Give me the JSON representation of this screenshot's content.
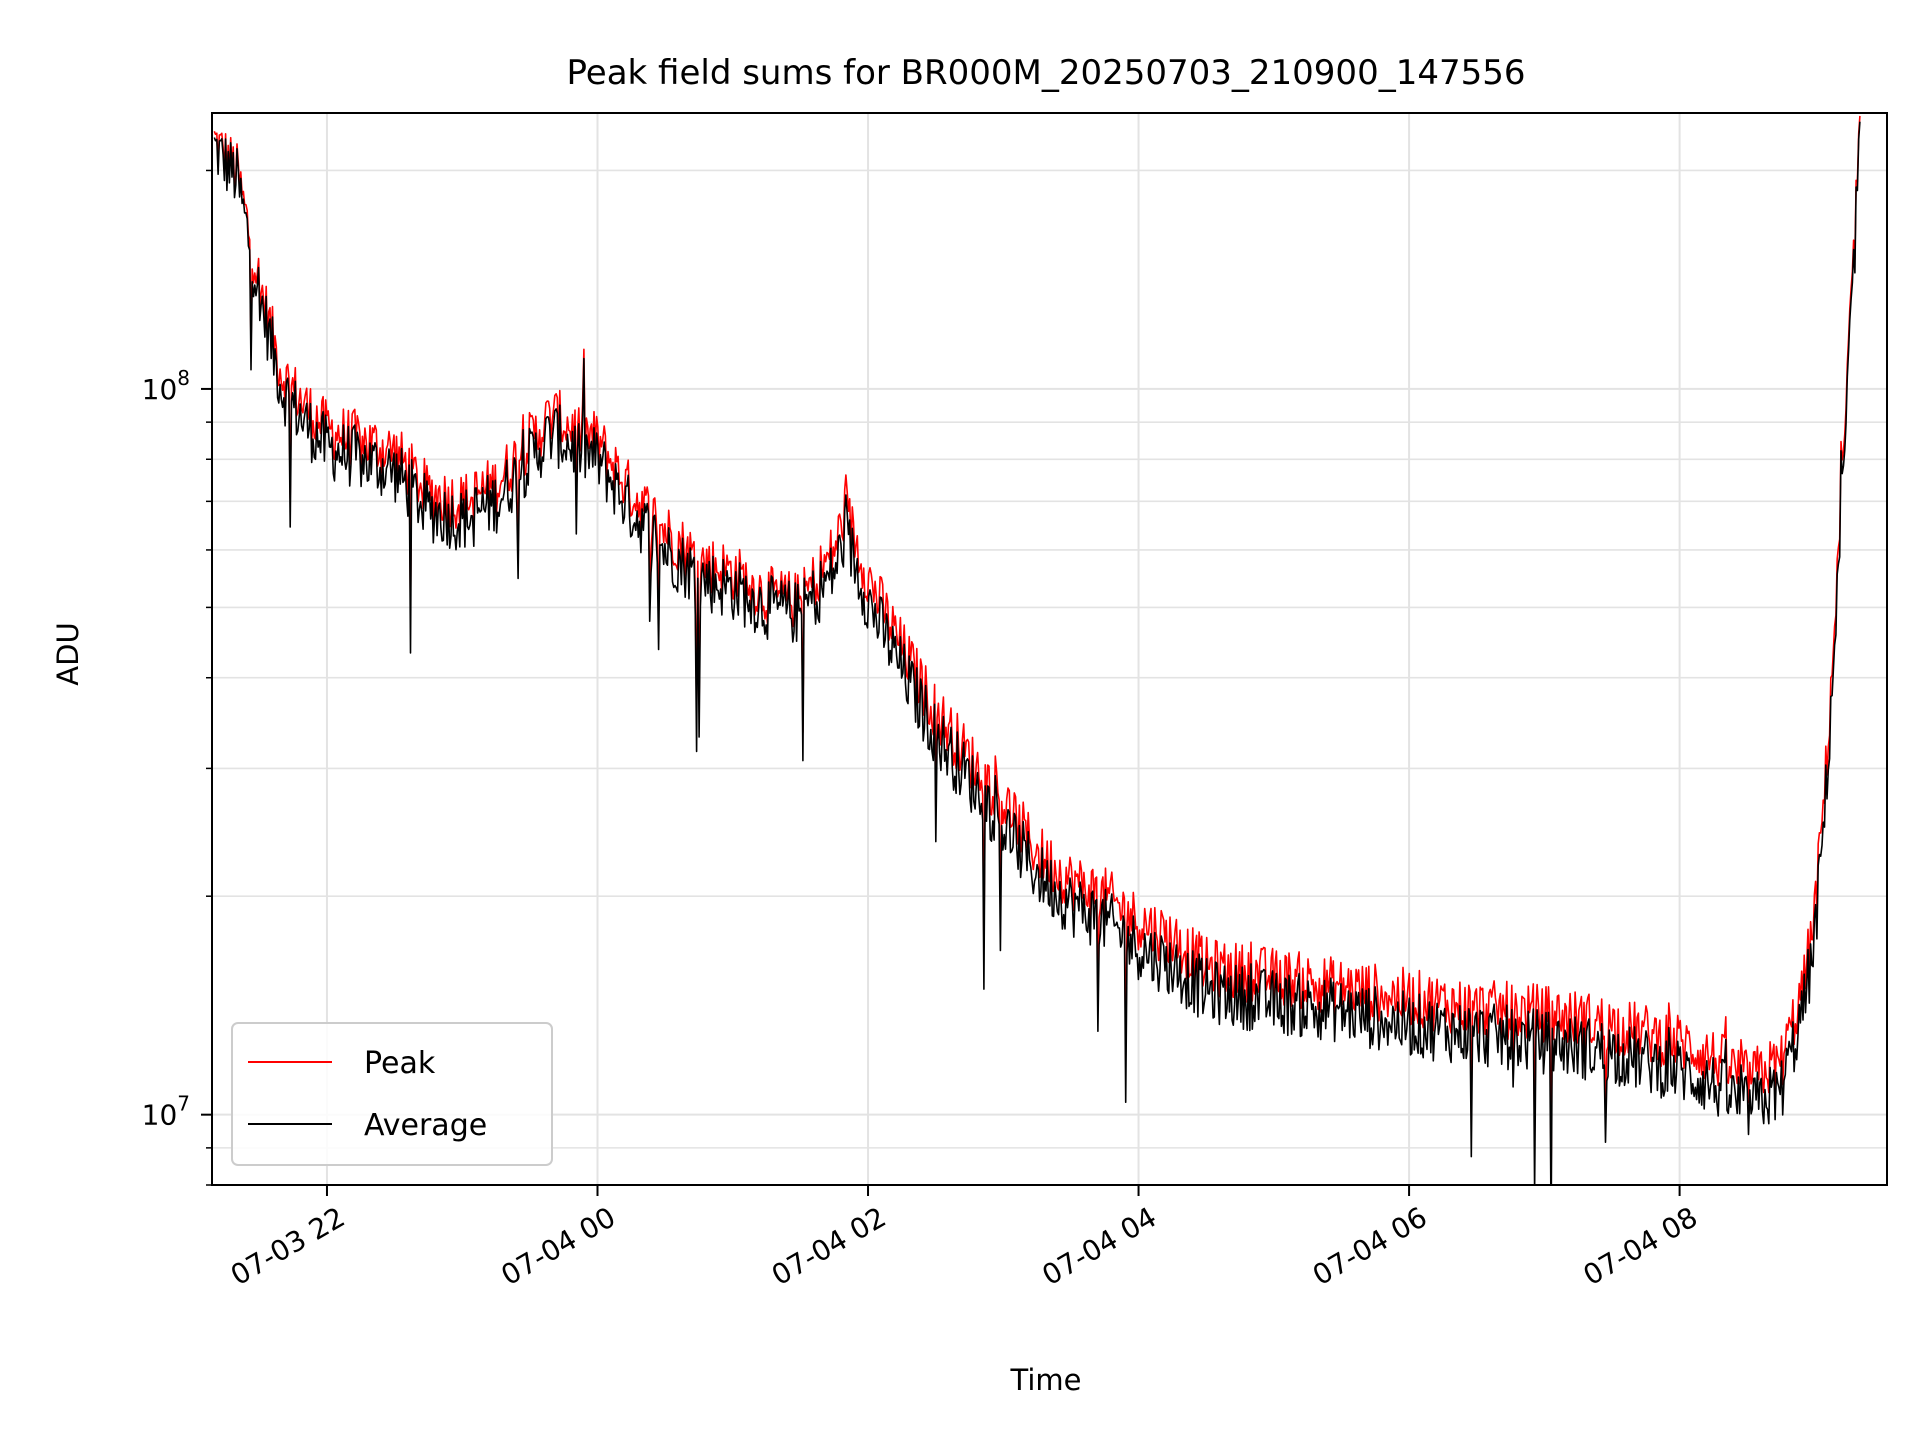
{
  "chart_data": {
    "type": "line",
    "title": "Peak field sums for BR000M_20250703_210900_147556",
    "xlabel": "Time",
    "ylabel": "ADU",
    "yscale": "log",
    "grid": true,
    "legend_position": "lower-left",
    "xlim": [
      "2025-07-03 21:09",
      "2025-07-04 09:32"
    ],
    "ylim": [
      8000000,
      240000000
    ],
    "x_ticks": [
      {
        "value": "2025-07-03 22:00",
        "label": "07-03 22"
      },
      {
        "value": "2025-07-04 00:00",
        "label": "07-04 00"
      },
      {
        "value": "2025-07-04 02:00",
        "label": "07-04 02"
      },
      {
        "value": "2025-07-04 04:00",
        "label": "07-04 04"
      },
      {
        "value": "2025-07-04 06:00",
        "label": "07-04 06"
      },
      {
        "value": "2025-07-04 08:00",
        "label": "07-04 08"
      }
    ],
    "y_ticks": [
      {
        "value": 10000000,
        "base": "10",
        "exp": "7"
      },
      {
        "value": 100000000,
        "base": "10",
        "exp": "8"
      }
    ],
    "x": [
      "2025-07-03 21:10",
      "2025-07-03 21:20",
      "2025-07-03 21:30",
      "2025-07-03 21:40",
      "2025-07-03 21:50",
      "2025-07-03 22:00",
      "2025-07-03 22:15",
      "2025-07-03 22:30",
      "2025-07-03 22:45",
      "2025-07-03 23:00",
      "2025-07-03 23:15",
      "2025-07-03 23:30",
      "2025-07-03 23:40",
      "2025-07-03 23:50",
      "2025-07-04 00:00",
      "2025-07-04 00:15",
      "2025-07-04 00:30",
      "2025-07-04 00:45",
      "2025-07-04 01:00",
      "2025-07-04 01:15",
      "2025-07-04 01:30",
      "2025-07-04 01:45",
      "2025-07-04 01:50",
      "2025-07-04 02:00",
      "2025-07-04 02:15",
      "2025-07-04 02:30",
      "2025-07-04 02:45",
      "2025-07-04 03:00",
      "2025-07-04 03:15",
      "2025-07-04 03:30",
      "2025-07-04 03:45",
      "2025-07-04 04:00",
      "2025-07-04 04:15",
      "2025-07-04 04:30",
      "2025-07-04 05:00",
      "2025-07-04 05:30",
      "2025-07-04 06:00",
      "2025-07-04 06:30",
      "2025-07-04 07:00",
      "2025-07-04 07:30",
      "2025-07-04 08:00",
      "2025-07-04 08:15",
      "2025-07-04 08:30",
      "2025-07-04 08:45",
      "2025-07-04 08:55",
      "2025-07-04 09:00",
      "2025-07-04 09:05",
      "2025-07-04 09:10",
      "2025-07-04 09:15",
      "2025-07-04 09:20"
    ],
    "series": [
      {
        "name": "Peak",
        "color": "#ff0000",
        "values": [
          220000000,
          200000000,
          140000000,
          105000000,
          95000000,
          88000000,
          85000000,
          82000000,
          72000000,
          70000000,
          74000000,
          85000000,
          92000000,
          88000000,
          85000000,
          72000000,
          64000000,
          58000000,
          56000000,
          52000000,
          51000000,
          60000000,
          68000000,
          55000000,
          44000000,
          36000000,
          31000000,
          27000000,
          23000000,
          21000000,
          20000000,
          18500000,
          17500000,
          16000000,
          15500000,
          15000000,
          14500000,
          14000000,
          13800000,
          13300000,
          12600000,
          12000000,
          11200000,
          11800000,
          15000000,
          19000000,
          30000000,
          55000000,
          110000000,
          230000000
        ]
      },
      {
        "name": "Average",
        "color": "#000000",
        "values": [
          215000000,
          195000000,
          135000000,
          100000000,
          90000000,
          83000000,
          80000000,
          77000000,
          68000000,
          66000000,
          70000000,
          80000000,
          87000000,
          83000000,
          80000000,
          68000000,
          60000000,
          55000000,
          53000000,
          50000000,
          49000000,
          56000000,
          63000000,
          51000000,
          41000000,
          33500000,
          29000000,
          25000000,
          21500000,
          19500000,
          18500000,
          17000000,
          16000000,
          14800000,
          14300000,
          13900000,
          13300000,
          12900000,
          12600000,
          12200000,
          11500000,
          11000000,
          10200000,
          10800000,
          14000000,
          17500000,
          28000000,
          52000000,
          105000000,
          225000000
        ]
      }
    ]
  }
}
